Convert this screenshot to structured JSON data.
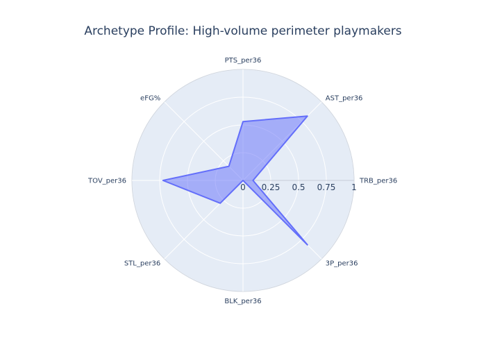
{
  "chart_data": {
    "type": "radar",
    "title": "Archetype Profile: High-volume perimeter playmakers",
    "categories": [
      "PTS_per36",
      "AST_per36",
      "TRB_per36",
      "3P_per36",
      "BLK_per36",
      "STL_per36",
      "TOV_per36",
      "eFG%"
    ],
    "series": [
      {
        "values": [
          0.53,
          0.82,
          0.09,
          0.82,
          0.0,
          0.29,
          0.72,
          0.18
        ]
      }
    ],
    "radial_range": [
      0,
      1
    ],
    "radial_ticks": [
      0,
      0.25,
      0.5,
      0.75,
      1
    ],
    "radial_tick_labels": [
      "0",
      "0.25",
      "0.5",
      "0.75",
      "1"
    ],
    "grid": true,
    "legend": "none",
    "colors": {
      "background": "#e5ecf6",
      "grid": "#ffffff",
      "series_fill": "#636efa",
      "series_line": "#636efa",
      "text": "#2a3f5f"
    }
  }
}
